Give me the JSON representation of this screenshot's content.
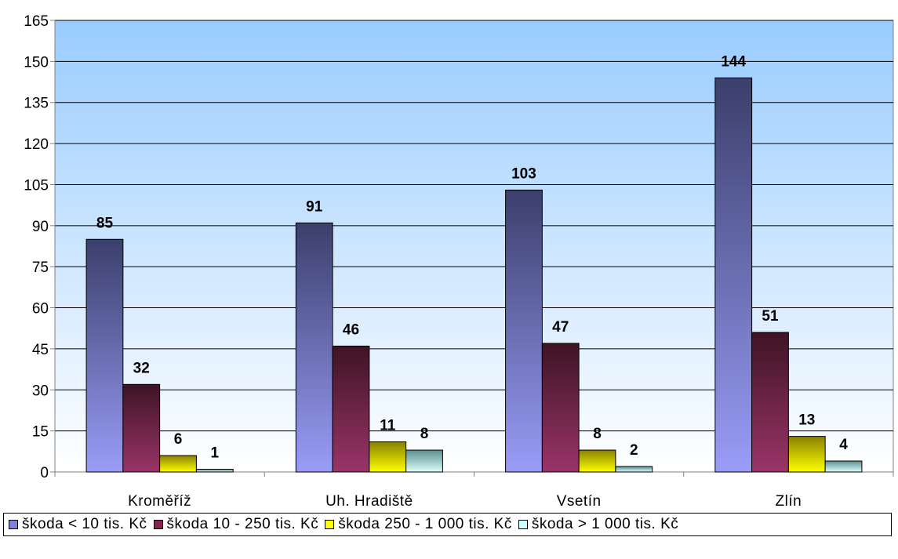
{
  "chart_data": {
    "type": "bar",
    "categories": [
      "Kroměříž",
      "Uh. Hradiště",
      "Vsetín",
      "Zlín"
    ],
    "series": [
      {
        "name": "škoda < 10 tis. Kč",
        "values": [
          85,
          91,
          103,
          144
        ],
        "color_top": "#3b3f6b",
        "color_bottom": "#9a9cf7",
        "swatch": "#8080e0"
      },
      {
        "name": "škoda 10 - 250 tis. Kč",
        "values": [
          32,
          46,
          47,
          51
        ],
        "color_top": "#3e1424",
        "color_bottom": "#9a3468",
        "swatch": "#8b2350"
      },
      {
        "name": "škoda 250 - 1 000 tis. Kč",
        "values": [
          6,
          11,
          8,
          13
        ],
        "color_top": "#8a8200",
        "color_bottom": "#ffff00",
        "swatch": "#ffff00"
      },
      {
        "name": "škoda > 1 000 tis. Kč",
        "values": [
          1,
          8,
          2,
          4
        ],
        "color_top": "#5c8e8e",
        "color_bottom": "#dcffff",
        "swatch": "#ccffff"
      }
    ],
    "ylim": [
      0,
      165
    ],
    "y_ticks": [
      0,
      15,
      30,
      45,
      60,
      75,
      90,
      105,
      120,
      135,
      150,
      165
    ],
    "grid": true,
    "legend_position": "bottom",
    "plot_background_top": "#99ccff",
    "plot_background_bottom": "#ffffff"
  }
}
